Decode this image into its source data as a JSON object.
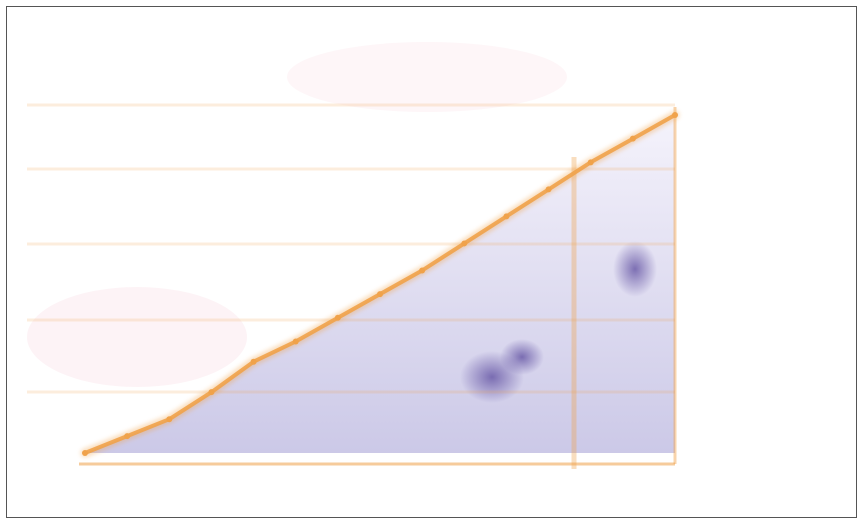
{
  "chart_data": {
    "type": "area",
    "title": "",
    "subtitle": "",
    "side_label": "",
    "xlabel": "",
    "ylabel": "",
    "x_ticks": [
      "",
      "",
      "",
      "",
      "",
      "",
      ""
    ],
    "y_ticks": [
      "",
      "",
      "",
      "",
      "",
      ""
    ],
    "series": [
      {
        "values": [
          0,
          0.05,
          0.1,
          0.18,
          0.27,
          0.33,
          0.4,
          0.47,
          0.54,
          0.62,
          0.7,
          0.78,
          0.86,
          0.93,
          1.0
        ]
      }
    ],
    "annotations": [
      "",
      "",
      "",
      "",
      "",
      "",
      "",
      "",
      "",
      "",
      ""
    ],
    "grid": true,
    "colors": {
      "line": "#f0a24a",
      "text": "#2a7ad6",
      "fill_top": "#f4f2fb",
      "fill_bottom": "#c9c6e6",
      "blob": "#5b4a9e"
    }
  }
}
